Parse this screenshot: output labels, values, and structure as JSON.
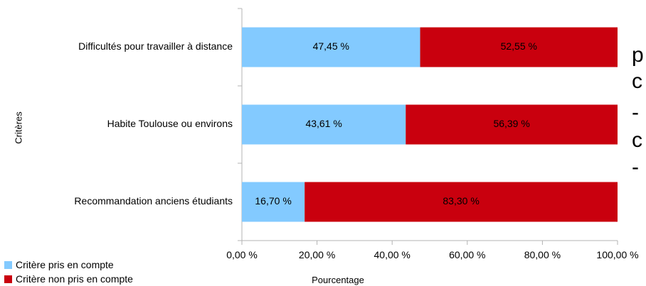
{
  "chart_data": {
    "type": "bar",
    "orientation": "horizontal",
    "stacked": true,
    "categories": [
      "Difficultés pour travailler à distance",
      "Habite Toulouse ou environs",
      "Recommandation anciens étudiants"
    ],
    "series": [
      {
        "name": "Critère pris en compte",
        "values": [
          47.45,
          43.61,
          16.7
        ],
        "labels": [
          "47,45 %",
          "43,61 %",
          "16,70 %"
        ],
        "color": "#83caff"
      },
      {
        "name": "Critère non pris en compte",
        "values": [
          52.55,
          56.39,
          83.3
        ],
        "labels": [
          "52,55 %",
          "56,39 %",
          "83,30 %"
        ],
        "color": "#c9000e"
      }
    ],
    "xlim": [
      0,
      100
    ],
    "x_ticks": [
      0,
      20,
      40,
      60,
      80,
      100
    ],
    "x_tick_labels": [
      "0,00 %",
      "20,00 %",
      "40,00 %",
      "60,00 %",
      "80,00 %",
      "100,00 %"
    ],
    "xlabel": "Pourcentage",
    "ylabel": "Critères",
    "legend": "bottom-left",
    "grid": false
  },
  "side_text": [
    "p",
    "c",
    "-",
    "c",
    "-"
  ]
}
